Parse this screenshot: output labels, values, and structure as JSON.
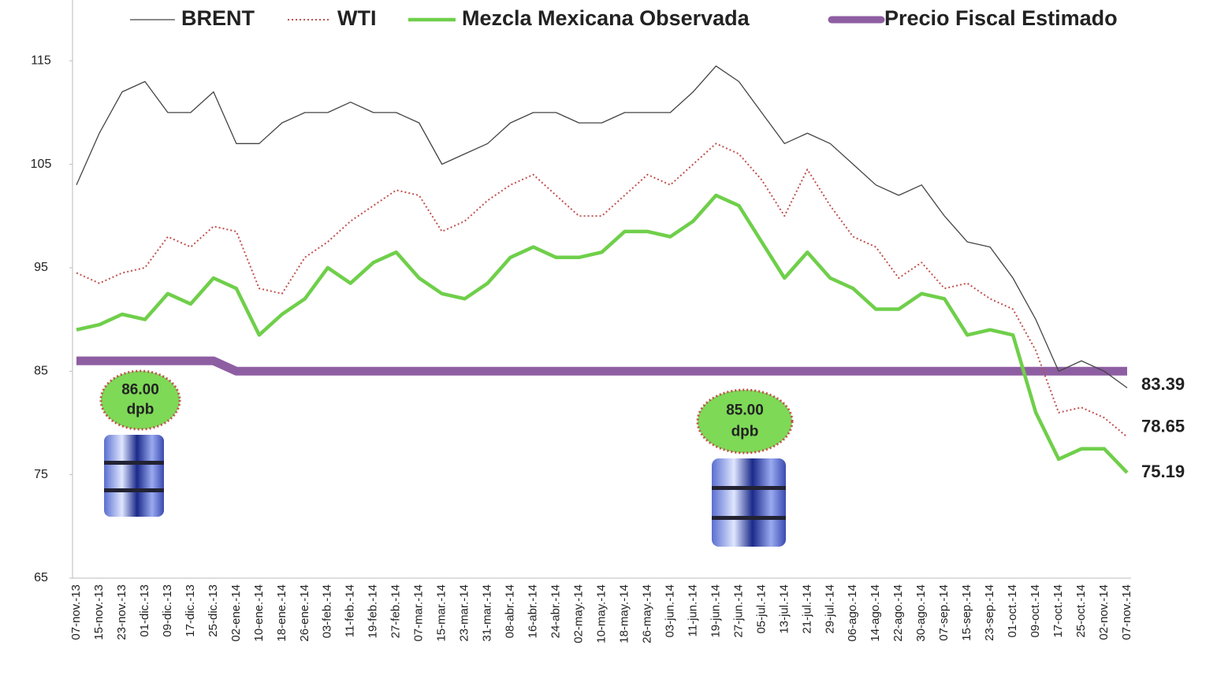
{
  "chart_data": {
    "type": "line",
    "categories": [
      "07-nov.-13",
      "15-nov.-13",
      "23-nov.-13",
      "01-dic.-13",
      "09-dic.-13",
      "17-dic.-13",
      "25-dic.-13",
      "02-ene.-14",
      "10-ene.-14",
      "18-ene.-14",
      "26-ene.-14",
      "03-feb.-14",
      "11-feb.-14",
      "19-feb.-14",
      "27-feb.-14",
      "07-mar.-14",
      "15-mar.-14",
      "23-mar.-14",
      "31-mar.-14",
      "08-abr.-14",
      "16-abr.-14",
      "24-abr.-14",
      "02-may.-14",
      "10-may.-14",
      "18-may.-14",
      "26-may.-14",
      "03-jun.-14",
      "11-jun.-14",
      "19-jun.-14",
      "27-jun.-14",
      "05-jul.-14",
      "13-jul.-14",
      "21-jul.-14",
      "29-jul.-14",
      "06-ago.-14",
      "14-ago.-14",
      "22-ago.-14",
      "30-ago.-14",
      "07-sep.-14",
      "15-sep.-14",
      "23-sep.-14",
      "01-oct.-14",
      "09-oct.-14",
      "17-oct.-14",
      "25-oct.-14",
      "02-nov.-14",
      "07-nov.-14"
    ],
    "series": [
      {
        "name": "BRENT",
        "color": "#444444",
        "style": "thin",
        "label_last": true,
        "values": [
          103,
          108,
          112,
          113,
          110,
          110,
          112,
          107,
          107,
          109,
          110,
          110,
          111,
          110,
          110,
          109,
          105,
          106,
          107,
          109,
          110,
          110,
          109,
          109,
          110,
          110,
          110,
          112,
          114.5,
          113,
          110,
          107,
          108,
          107,
          105,
          103,
          102,
          103,
          100,
          97.5,
          97,
          94,
          90,
          85,
          86,
          85,
          83.39
        ]
      },
      {
        "name": "WTI",
        "color": "#c0504d",
        "style": "dotted",
        "label_last": true,
        "values": [
          94.5,
          93.5,
          94.5,
          95,
          98,
          97,
          99,
          98.5,
          93,
          92.5,
          96,
          97.5,
          99.5,
          101,
          102.5,
          102,
          98.5,
          99.5,
          101.5,
          103,
          104,
          102,
          100,
          100,
          102,
          104,
          103,
          105,
          107,
          106,
          103.5,
          100,
          104.5,
          101,
          98,
          97,
          94,
          95.5,
          93,
          93.5,
          92,
          91,
          87,
          81,
          81.5,
          80.5,
          78.65
        ]
      },
      {
        "name": "Mezcla Mexicana Observada",
        "color": "#6fcf4a",
        "style": "thick",
        "label_last": true,
        "values": [
          89,
          89.5,
          90.5,
          90,
          92.5,
          91.5,
          94,
          93,
          88.5,
          90.5,
          92,
          95,
          93.5,
          95.5,
          96.5,
          94,
          92.5,
          92,
          93.5,
          96,
          97,
          96,
          96,
          96.5,
          98.5,
          98.5,
          98,
          99.5,
          102,
          101,
          97.5,
          94,
          96.5,
          94,
          93,
          91,
          91,
          92.5,
          92,
          88.5,
          89,
          88.5,
          81,
          76.5,
          77.5,
          77.5,
          75.19
        ]
      },
      {
        "name": "Precio Fiscal Estimado",
        "color": "#8e5ea2",
        "style": "heavy",
        "label_last": false,
        "values": [
          86,
          86,
          86,
          86,
          86,
          86,
          86,
          85,
          85,
          85,
          85,
          85,
          85,
          85,
          85,
          85,
          85,
          85,
          85,
          85,
          85,
          85,
          85,
          85,
          85,
          85,
          85,
          85,
          85,
          85,
          85,
          85,
          85,
          85,
          85,
          85,
          85,
          85,
          85,
          85,
          85,
          85,
          85,
          85,
          85,
          85,
          85
        ]
      }
    ],
    "ylim": [
      65,
      120
    ],
    "yticks": [
      65,
      75,
      85,
      95,
      105,
      115
    ],
    "grid": false,
    "annotations": [
      {
        "lines": [
          "86.00",
          "dpb"
        ]
      },
      {
        "lines": [
          "85.00",
          "dpb"
        ]
      }
    ]
  }
}
